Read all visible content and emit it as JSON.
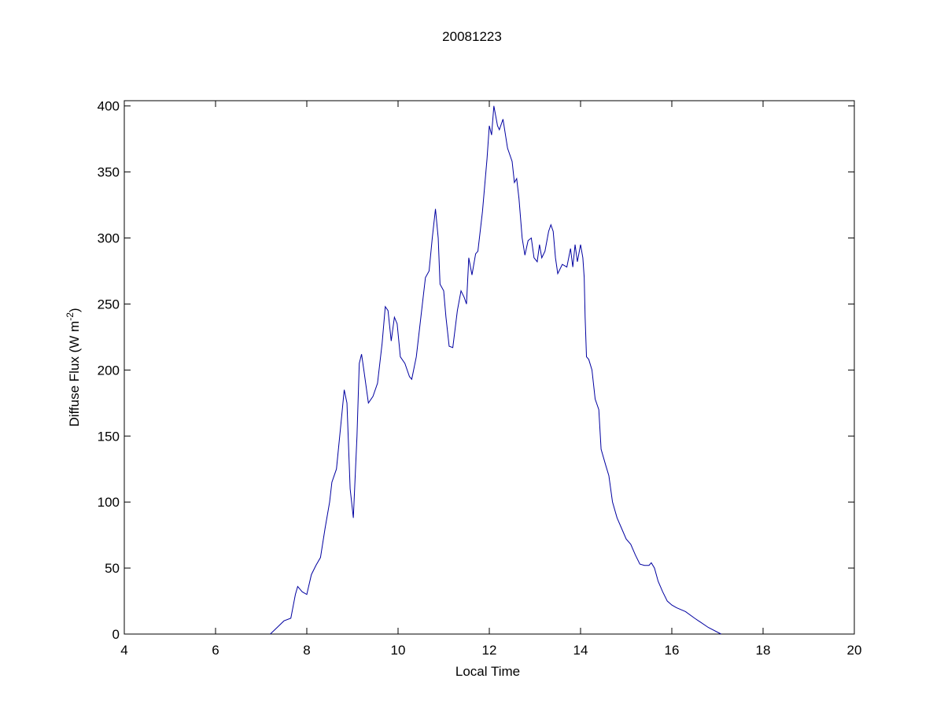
{
  "chart_data": {
    "type": "line",
    "title": "20081223",
    "xlabel": "Local Time",
    "ylabel": [
      "Diffuse Flux (W m",
      "-2",
      ")"
    ],
    "x": [
      7.2,
      7.35,
      7.5,
      7.65,
      7.75,
      7.8,
      7.9,
      8.0,
      8.1,
      8.2,
      8.3,
      8.4,
      8.5,
      8.55,
      8.65,
      8.75,
      8.82,
      8.88,
      8.95,
      9.02,
      9.1,
      9.15,
      9.2,
      9.25,
      9.35,
      9.45,
      9.55,
      9.65,
      9.72,
      9.78,
      9.85,
      9.92,
      9.98,
      10.05,
      10.15,
      10.25,
      10.3,
      10.4,
      10.5,
      10.6,
      10.68,
      10.75,
      10.82,
      10.88,
      10.92,
      11.0,
      11.05,
      11.12,
      11.2,
      11.3,
      11.38,
      11.45,
      11.5,
      11.55,
      11.62,
      11.7,
      11.75,
      11.85,
      11.95,
      12.0,
      12.05,
      12.1,
      12.18,
      12.22,
      12.3,
      12.4,
      12.5,
      12.55,
      12.6,
      12.65,
      12.72,
      12.78,
      12.85,
      12.92,
      12.98,
      13.05,
      13.1,
      13.15,
      13.22,
      13.3,
      13.35,
      13.4,
      13.45,
      13.5,
      13.6,
      13.7,
      13.78,
      13.83,
      13.88,
      13.93,
      14.0,
      14.05,
      14.08,
      14.1,
      14.13,
      14.18,
      14.25,
      14.32,
      14.4,
      14.45,
      14.55,
      14.62,
      14.7,
      14.8,
      14.9,
      15.0,
      15.1,
      15.2,
      15.3,
      15.4,
      15.5,
      15.55,
      15.62,
      15.7,
      15.8,
      15.9,
      16.0,
      16.1,
      16.3,
      16.5,
      16.8,
      17.08
    ],
    "series": [
      {
        "color": "#0000a0",
        "values": [
          0,
          5,
          10,
          12,
          30,
          36,
          32,
          30,
          45,
          52,
          58,
          80,
          100,
          115,
          125,
          160,
          185,
          175,
          110,
          88,
          150,
          205,
          212,
          200,
          175,
          180,
          190,
          220,
          248,
          245,
          222,
          240,
          235,
          210,
          205,
          195,
          193,
          210,
          240,
          270,
          275,
          300,
          322,
          300,
          265,
          260,
          240,
          218,
          217,
          245,
          260,
          255,
          250,
          285,
          272,
          288,
          290,
          320,
          360,
          385,
          378,
          400,
          385,
          382,
          390,
          368,
          358,
          342,
          345,
          330,
          300,
          287,
          298,
          300,
          285,
          282,
          295,
          285,
          290,
          305,
          310,
          305,
          285,
          273,
          280,
          278,
          292,
          278,
          295,
          282,
          295,
          285,
          270,
          240,
          210,
          208,
          200,
          178,
          170,
          140,
          128,
          120,
          100,
          88,
          80,
          72,
          68,
          60,
          53,
          52,
          52,
          54,
          50,
          40,
          32,
          25,
          22,
          20,
          17,
          12,
          5,
          0
        ]
      }
    ],
    "xlim": [
      4,
      20
    ],
    "xticks": [
      4,
      6,
      8,
      10,
      12,
      14,
      16,
      18,
      20
    ],
    "ylim": [
      0,
      404
    ],
    "yticks": [
      0,
      50,
      100,
      150,
      200,
      250,
      300,
      350,
      400
    ],
    "grid": false
  }
}
